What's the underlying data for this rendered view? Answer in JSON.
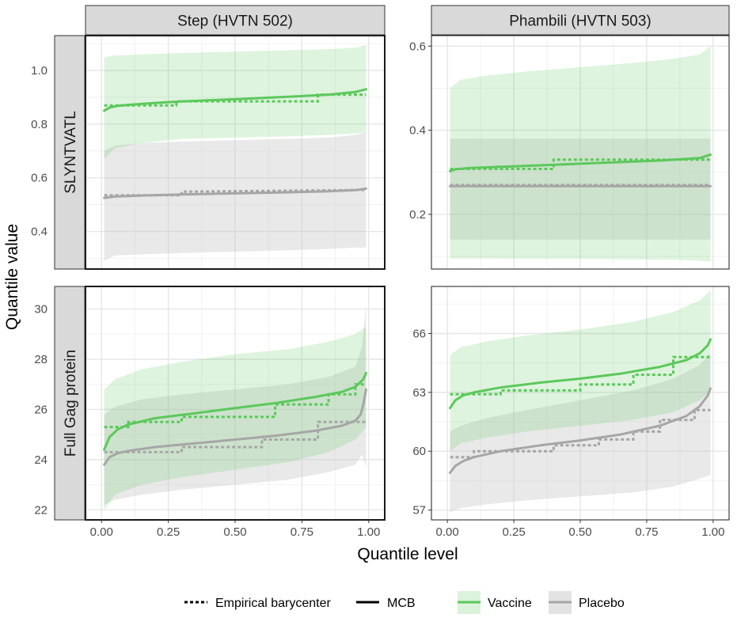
{
  "colors": {
    "vaccine": "#5cc85c",
    "placebo": "#a6a6a6",
    "vaccine_band": "#5cc85c",
    "placebo_band": "#c8c8c8",
    "strip_fill": "#d9d9d9",
    "grid_major": "#e6e6e6",
    "grid_minor": "#f2f2f2"
  },
  "chart_data": {
    "type": "line",
    "xlabel": "Quantile level",
    "ylabel": "Quantile value",
    "column_labels": [
      "Step (HVTN 502)",
      "Phambili (HVTN 503)"
    ],
    "row_labels": [
      "SLYNTVATL",
      "Full Gag protein"
    ],
    "xlim": [
      -0.06,
      1.06
    ],
    "x_ticks": [
      0.0,
      0.25,
      0.5,
      0.75,
      1.0
    ],
    "x_tick_labels": [
      "0.00",
      "0.25",
      "0.50",
      "0.75",
      "1.00"
    ],
    "legend": {
      "position": "bottom",
      "linetype_items": [
        "Empirical barycenter",
        "MCB"
      ],
      "group_items": [
        "Vaccine",
        "Placebo"
      ]
    },
    "panels": [
      {
        "row": 0,
        "col": 0,
        "ylim": [
          0.26,
          1.13
        ],
        "y_ticks": [
          0.4,
          0.6,
          0.8,
          1.0
        ],
        "y_tick_labels": [
          "0.4",
          "0.6",
          "0.8",
          "1.0"
        ],
        "series": [
          {
            "group": "Placebo",
            "band_x": [
              0.01,
              0.05,
              0.15,
              0.3,
              0.5,
              0.7,
              0.85,
              0.95,
              0.99
            ],
            "band_lower": [
              0.29,
              0.31,
              0.315,
              0.32,
              0.325,
              0.33,
              0.335,
              0.34,
              0.34
            ],
            "band_upper": [
              0.7,
              0.72,
              0.73,
              0.735,
              0.74,
              0.745,
              0.75,
              0.76,
              0.77
            ],
            "mcb_x": [
              0.01,
              0.05,
              0.15,
              0.3,
              0.5,
              0.7,
              0.85,
              0.95,
              0.99
            ],
            "mcb_y": [
              0.525,
              0.53,
              0.534,
              0.538,
              0.542,
              0.546,
              0.55,
              0.554,
              0.56
            ],
            "emp_x": [
              0.01,
              0.3,
              0.3,
              0.99
            ],
            "emp_y": [
              0.535,
              0.535,
              0.548,
              0.555
            ]
          },
          {
            "group": "Vaccine",
            "band_x": [
              0.01,
              0.05,
              0.15,
              0.3,
              0.5,
              0.7,
              0.85,
              0.95,
              0.99
            ],
            "band_lower": [
              0.67,
              0.71,
              0.73,
              0.745,
              0.75,
              0.755,
              0.76,
              0.765,
              0.77
            ],
            "band_upper": [
              1.05,
              1.055,
              1.06,
              1.065,
              1.07,
              1.075,
              1.08,
              1.085,
              1.095
            ],
            "mcb_x": [
              0.01,
              0.03,
              0.06,
              0.1,
              0.2,
              0.3,
              0.5,
              0.7,
              0.85,
              0.95,
              0.99
            ],
            "mcb_y": [
              0.85,
              0.862,
              0.868,
              0.872,
              0.879,
              0.885,
              0.893,
              0.902,
              0.91,
              0.92,
              0.93
            ],
            "emp_x": [
              0.01,
              0.28,
              0.28,
              0.81,
              0.81,
              0.99
            ],
            "emp_y": [
              0.87,
              0.87,
              0.885,
              0.885,
              0.91,
              0.91
            ]
          }
        ]
      },
      {
        "row": 0,
        "col": 1,
        "ylim": [
          0.07,
          0.625
        ],
        "y_ticks": [
          0.2,
          0.4,
          0.6
        ],
        "y_tick_labels": [
          "0.2",
          "0.4",
          "0.6"
        ],
        "series": [
          {
            "group": "Placebo",
            "band_x": [
              0.01,
              0.99
            ],
            "band_lower": [
              0.14,
              0.14
            ],
            "band_upper": [
              0.38,
              0.38
            ],
            "mcb_x": [
              0.01,
              0.99
            ],
            "mcb_y": [
              0.267,
              0.267
            ],
            "emp_x": [
              0.01,
              0.99
            ],
            "emp_y": [
              0.27,
              0.27
            ]
          },
          {
            "group": "Vaccine",
            "band_x": [
              0.01,
              0.05,
              0.15,
              0.3,
              0.5,
              0.7,
              0.85,
              0.95,
              0.99
            ],
            "band_lower": [
              0.095,
              0.095,
              0.095,
              0.094,
              0.094,
              0.093,
              0.092,
              0.09,
              0.087
            ],
            "band_upper": [
              0.5,
              0.52,
              0.53,
              0.54,
              0.55,
              0.56,
              0.57,
              0.58,
              0.6
            ],
            "mcb_x": [
              0.01,
              0.03,
              0.08,
              0.2,
              0.4,
              0.6,
              0.8,
              0.95,
              0.99
            ],
            "mcb_y": [
              0.303,
              0.307,
              0.31,
              0.313,
              0.318,
              0.323,
              0.328,
              0.334,
              0.342
            ],
            "emp_x": [
              0.01,
              0.4,
              0.4,
              0.99
            ],
            "emp_y": [
              0.308,
              0.308,
              0.33,
              0.33
            ]
          }
        ]
      },
      {
        "row": 1,
        "col": 0,
        "ylim": [
          21.6,
          30.9
        ],
        "y_ticks": [
          22,
          24,
          26,
          28,
          30
        ],
        "y_tick_labels": [
          "22",
          "24",
          "26",
          "28",
          "30"
        ],
        "series": [
          {
            "group": "Placebo",
            "band_x": [
              0.01,
              0.05,
              0.15,
              0.3,
              0.5,
              0.7,
              0.85,
              0.95,
              0.975,
              0.99
            ],
            "band_lower": [
              22.2,
              22.4,
              22.6,
              22.8,
              23.0,
              23.2,
              23.5,
              23.8,
              24.2,
              23.7
            ],
            "band_upper": [
              25.8,
              26.1,
              26.4,
              26.6,
              26.8,
              27.0,
              27.3,
              27.7,
              28.5,
              30.2
            ],
            "mcb_x": [
              0.01,
              0.03,
              0.06,
              0.1,
              0.2,
              0.35,
              0.5,
              0.65,
              0.8,
              0.9,
              0.95,
              0.97,
              0.98,
              0.99
            ],
            "mcb_y": [
              23.8,
              24.1,
              24.25,
              24.35,
              24.5,
              24.65,
              24.8,
              24.95,
              25.15,
              25.35,
              25.55,
              25.8,
              26.2,
              26.8
            ],
            "emp_x": [
              0.01,
              0.3,
              0.3,
              0.6,
              0.6,
              0.81,
              0.81,
              0.99
            ],
            "emp_y": [
              24.3,
              24.3,
              24.5,
              24.5,
              24.8,
              24.8,
              25.5,
              25.5
            ]
          },
          {
            "group": "Vaccine",
            "band_x": [
              0.01,
              0.05,
              0.15,
              0.3,
              0.5,
              0.7,
              0.85,
              0.95,
              0.99
            ],
            "band_lower": [
              22.0,
              22.6,
              23.0,
              23.3,
              23.6,
              23.9,
              24.3,
              24.8,
              25.3
            ],
            "band_upper": [
              26.8,
              27.2,
              27.6,
              27.9,
              28.2,
              28.4,
              28.7,
              29.0,
              29.3
            ],
            "mcb_x": [
              0.01,
              0.03,
              0.06,
              0.1,
              0.2,
              0.35,
              0.5,
              0.65,
              0.8,
              0.9,
              0.95,
              0.98,
              0.99
            ],
            "mcb_y": [
              24.4,
              24.9,
              25.2,
              25.4,
              25.65,
              25.85,
              26.05,
              26.25,
              26.5,
              26.7,
              26.9,
              27.2,
              27.45
            ],
            "emp_x": [
              0.01,
              0.1,
              0.1,
              0.3,
              0.3,
              0.65,
              0.65,
              0.85,
              0.85,
              0.95,
              0.95,
              0.99
            ],
            "emp_y": [
              25.3,
              25.3,
              25.5,
              25.5,
              25.7,
              25.7,
              26.2,
              26.2,
              26.6,
              26.6,
              27.0,
              27.0
            ]
          }
        ]
      },
      {
        "row": 1,
        "col": 1,
        "ylim": [
          56.5,
          68.4
        ],
        "y_ticks": [
          57,
          60,
          63,
          66
        ],
        "y_tick_labels": [
          "57",
          "60",
          "63",
          "66"
        ],
        "series": [
          {
            "group": "Placebo",
            "band_x": [
              0.01,
              0.05,
              0.15,
              0.3,
              0.5,
              0.7,
              0.85,
              0.95,
              0.99
            ],
            "band_lower": [
              56.9,
              57.1,
              57.3,
              57.5,
              57.7,
              57.9,
              58.2,
              58.6,
              58.8
            ],
            "band_upper": [
              61.0,
              61.3,
              61.7,
              62.1,
              62.6,
              63.1,
              63.7,
              64.4,
              65.0
            ],
            "mcb_x": [
              0.01,
              0.03,
              0.06,
              0.1,
              0.2,
              0.35,
              0.5,
              0.65,
              0.8,
              0.9,
              0.95,
              0.98,
              0.99
            ],
            "mcb_y": [
              58.9,
              59.25,
              59.5,
              59.7,
              60.0,
              60.3,
              60.55,
              60.85,
              61.3,
              61.8,
              62.3,
              62.85,
              63.2
            ],
            "emp_x": [
              0.01,
              0.1,
              0.1,
              0.4,
              0.4,
              0.57,
              0.57,
              0.7,
              0.7,
              0.8,
              0.8,
              0.93,
              0.93,
              0.99
            ],
            "emp_y": [
              59.7,
              59.7,
              60.0,
              60.0,
              60.3,
              60.3,
              60.6,
              60.6,
              61.0,
              61.0,
              61.6,
              61.6,
              62.1,
              62.1
            ]
          },
          {
            "group": "Vaccine",
            "band_x": [
              0.01,
              0.05,
              0.15,
              0.3,
              0.5,
              0.7,
              0.85,
              0.95,
              0.99
            ],
            "band_lower": [
              60.0,
              60.4,
              60.7,
              61.0,
              61.3,
              61.6,
              62.0,
              62.6,
              63.1
            ],
            "band_upper": [
              64.9,
              65.3,
              65.6,
              65.9,
              66.2,
              66.6,
              67.1,
              67.7,
              68.2
            ],
            "mcb_x": [
              0.01,
              0.03,
              0.06,
              0.1,
              0.2,
              0.35,
              0.5,
              0.65,
              0.8,
              0.9,
              0.95,
              0.98,
              0.99
            ],
            "mcb_y": [
              62.2,
              62.6,
              62.85,
              63.0,
              63.25,
              63.5,
              63.7,
              63.95,
              64.3,
              64.65,
              65.0,
              65.4,
              65.7
            ],
            "emp_x": [
              0.01,
              0.2,
              0.2,
              0.5,
              0.5,
              0.7,
              0.7,
              0.85,
              0.85,
              0.99
            ],
            "emp_y": [
              62.9,
              62.9,
              63.1,
              63.1,
              63.4,
              63.4,
              63.9,
              63.9,
              64.8,
              64.8
            ]
          }
        ]
      }
    ]
  }
}
